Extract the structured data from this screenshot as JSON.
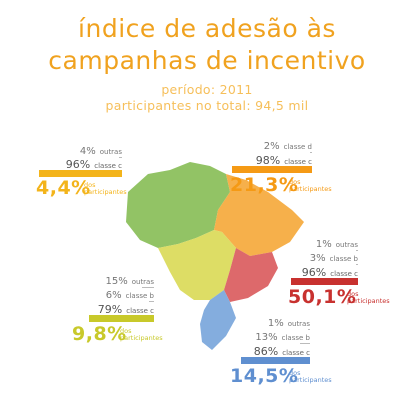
{
  "title_lines": [
    "índice de adesão às",
    "campanhas de incentivo"
  ],
  "periodo": "período: 2011",
  "participantes_total": "participantes no total: 94,5 mil",
  "colors": {
    "title": "#f0a21f",
    "norte": "#f3b41b",
    "nordeste": "#f59a15",
    "centro_oeste": "#c8c92a",
    "sudeste": "#c8312f",
    "sul": "#5f8fd0",
    "outros": "#bcd07a"
  },
  "chart_data": {
    "type": "bar",
    "title": "índice de adesão às campanhas de incentivo",
    "subtitle": [
      "período: 2011",
      "participantes no total: 94,5 mil"
    ],
    "series_note": "",
    "regions": [
      {
        "key": "norte",
        "rows": [
          {
            "label": "outras",
            "value": 4
          },
          {
            "label": "classe c",
            "value": 96
          }
        ],
        "total": 4.4,
        "total_text": "4,4%",
        "total_label": [
          "dos",
          "participantes"
        ]
      },
      {
        "key": "nordeste",
        "rows": [
          {
            "label": "classe d",
            "value": 2
          },
          {
            "label": "classe c",
            "value": 98
          }
        ],
        "total": 21.3,
        "total_text": "21,3%",
        "total_label": [
          "dos",
          "participantes"
        ]
      },
      {
        "key": "sudeste",
        "rows": [
          {
            "label": "outras",
            "value": 1
          },
          {
            "label": "classe b",
            "value": 3
          },
          {
            "label": "classe c",
            "value": 96
          }
        ],
        "total": 50.1,
        "total_text": "50,1%",
        "total_label": [
          "dos",
          "participantes"
        ]
      },
      {
        "key": "centro_oeste",
        "rows": [
          {
            "label": "outras",
            "value": 15
          },
          {
            "label": "classe b",
            "value": 6
          },
          {
            "label": "classe c",
            "value": 79
          }
        ],
        "total": 9.8,
        "total_text": "9,8%",
        "total_label": [
          "dos",
          "participantes"
        ]
      },
      {
        "key": "sul",
        "rows": [
          {
            "label": "outras",
            "value": 1
          },
          {
            "label": "classe b",
            "value": 13
          },
          {
            "label": "classe c",
            "value": 86
          }
        ],
        "total": 14.5,
        "total_text": "14,5%",
        "total_label": [
          "dos",
          "participantes"
        ]
      }
    ]
  }
}
